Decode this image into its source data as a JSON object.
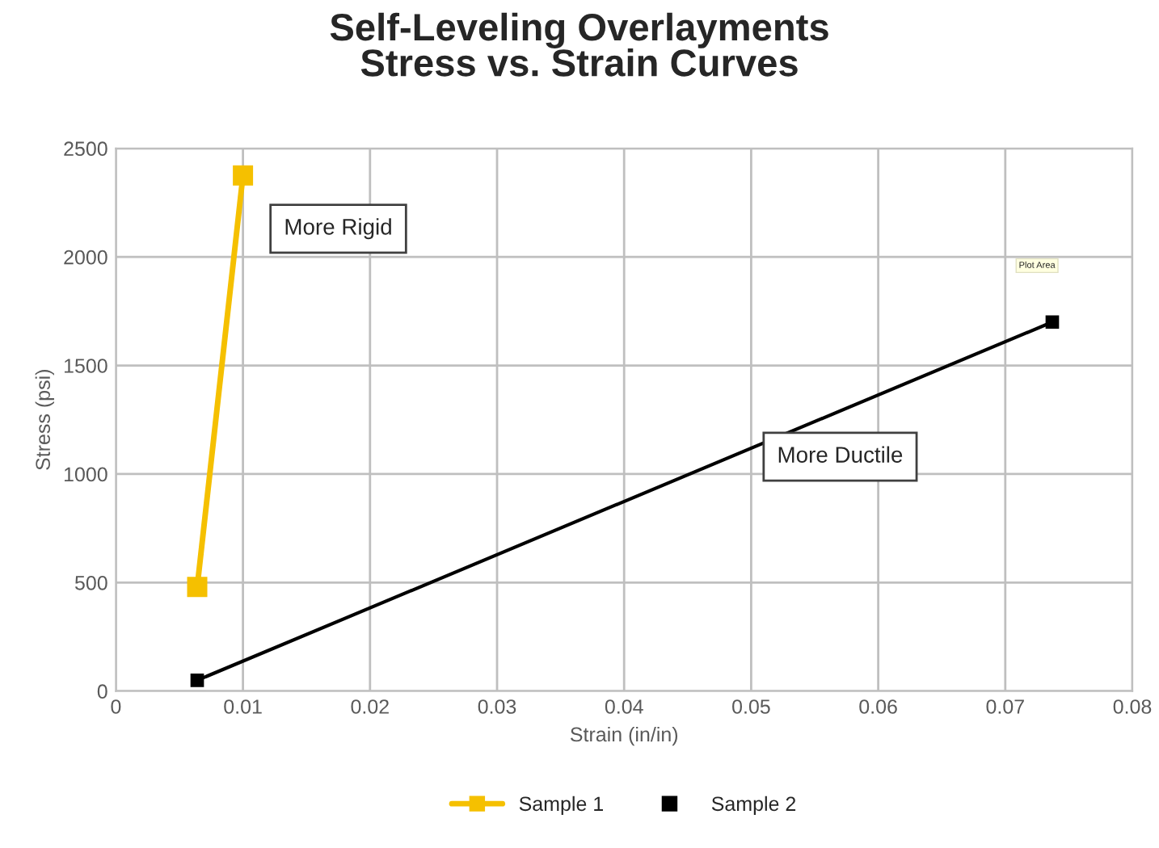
{
  "chart_data": {
    "type": "line",
    "title": "Self-Leveling Overlayments\nStress vs. Strain Curves",
    "xlabel": "Strain (in/in)",
    "ylabel": "Stress (psi)",
    "series": [
      {
        "name": "Sample 1",
        "color": "#f5c000",
        "x": [
          0.0064,
          0.01
        ],
        "values": [
          480,
          2375
        ]
      },
      {
        "name": "Sample 2",
        "color": "#000000",
        "x": [
          0.0064,
          0.0737
        ],
        "values": [
          50,
          1700
        ]
      }
    ],
    "xlim": [
      0,
      0.08
    ],
    "xticks": [
      0,
      0.01,
      0.02,
      0.03,
      0.04,
      0.05,
      0.06,
      0.07,
      0.08
    ],
    "ylim": [
      0,
      2500
    ],
    "yticks": [
      0,
      500,
      1000,
      1500,
      2000,
      2500
    ],
    "annotations": [
      "More Rigid",
      "More Ductile",
      "Plot Area"
    ],
    "grid": true,
    "legend": "bottom",
    "marker": "square",
    "line_style": "solid"
  }
}
